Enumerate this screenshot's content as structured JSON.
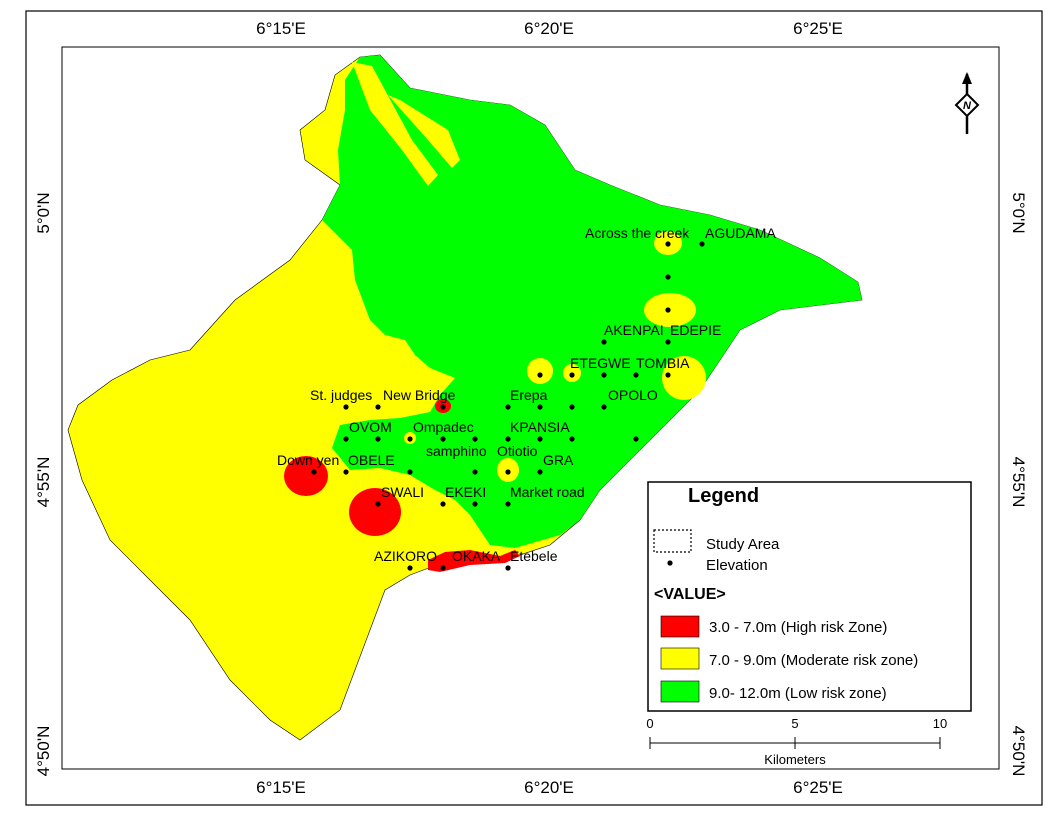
{
  "map": {
    "top_ticks": [
      "6°15'E",
      "6°20'E",
      "6°25'E"
    ],
    "bottom_ticks": [
      "6°15'E",
      "6°20'E",
      "6°25'E"
    ],
    "left_ticks": [
      "5°0'N",
      "4°55'N",
      "4°50'N"
    ],
    "right_ticks": [
      "5°0'N",
      "4°55'N",
      "4°50'N"
    ],
    "north_arrow_letter": "N",
    "places": [
      "Across the creek",
      "AGUDAMA",
      "AKENPAI",
      "EDEPIE",
      "ETEGWE",
      "TOMBIA",
      "OPOLO",
      "St. judges",
      "New Bridge",
      "Erepa",
      "OVOM",
      "Ompadec",
      "KPANSIA",
      "Down yen",
      "OBELE",
      "samphino",
      "Otiotio",
      "GRA",
      "SWALI",
      "EKEKI",
      "Market road",
      "AZIKORO",
      "OKAKA",
      "Etebele"
    ]
  },
  "legend": {
    "title": "Legend",
    "study_area": "Study Area",
    "elevation": "Elevation",
    "value_header": "<VALUE>",
    "classes": [
      {
        "label": "3.0 - 7.0m (High risk Zone)",
        "color": "#ff0000"
      },
      {
        "label": "7.0 - 9.0m (Moderate risk zone)",
        "color": "#ffff00"
      },
      {
        "label": "9.0- 12.0m (Low risk zone)",
        "color": "#00ff00"
      }
    ]
  },
  "scale_bar": {
    "ticks": [
      "0",
      "5",
      "10"
    ],
    "unit": "Kilometers"
  }
}
